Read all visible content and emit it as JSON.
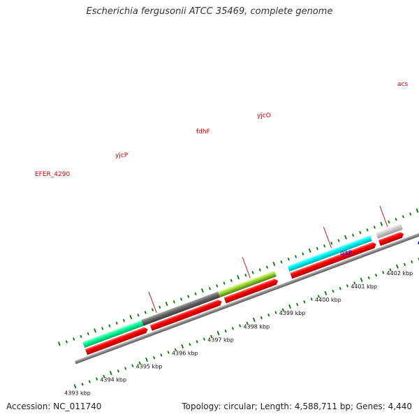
{
  "title": "Escherichia fergusonii ATCC 35469, complete genome",
  "footer": {
    "accession": "Accession: NC_011740",
    "stats": "Topology: circular; Length: 4,588,711 bp; Genes: 4,440"
  },
  "colors": {
    "label_red": "#cc0000",
    "label_blue": "#0000cc",
    "tick_green": "#007700",
    "cds_red": "#ff0000",
    "cyan": "#00ffff",
    "dark_gray": "#666666",
    "light_gray": "#cccccc",
    "yellow_green": "#99dd33",
    "spring_green": "#00ff99",
    "blue": "#0000ee",
    "lavender": "#7766cc",
    "backbone": "#888888"
  },
  "scale_labels": [
    "4393 kbp",
    "4394 kbp",
    "4395 kbp",
    "4396 kbp",
    "4397 kbp",
    "4398 kbp",
    "4399 kbp",
    "4400 kbp",
    "4401 kbp",
    "4402 kbp"
  ],
  "gene_labels": [
    {
      "name": "EFER_4290",
      "color": "label_red"
    },
    {
      "name": "yjcP",
      "color": "label_red"
    },
    {
      "name": "fdhF",
      "color": "label_red"
    },
    {
      "name": "yjcO",
      "color": "label_red"
    },
    {
      "name": "acs",
      "color": "label_red"
    },
    {
      "name": "gltP",
      "color": "label_blue"
    }
  ]
}
